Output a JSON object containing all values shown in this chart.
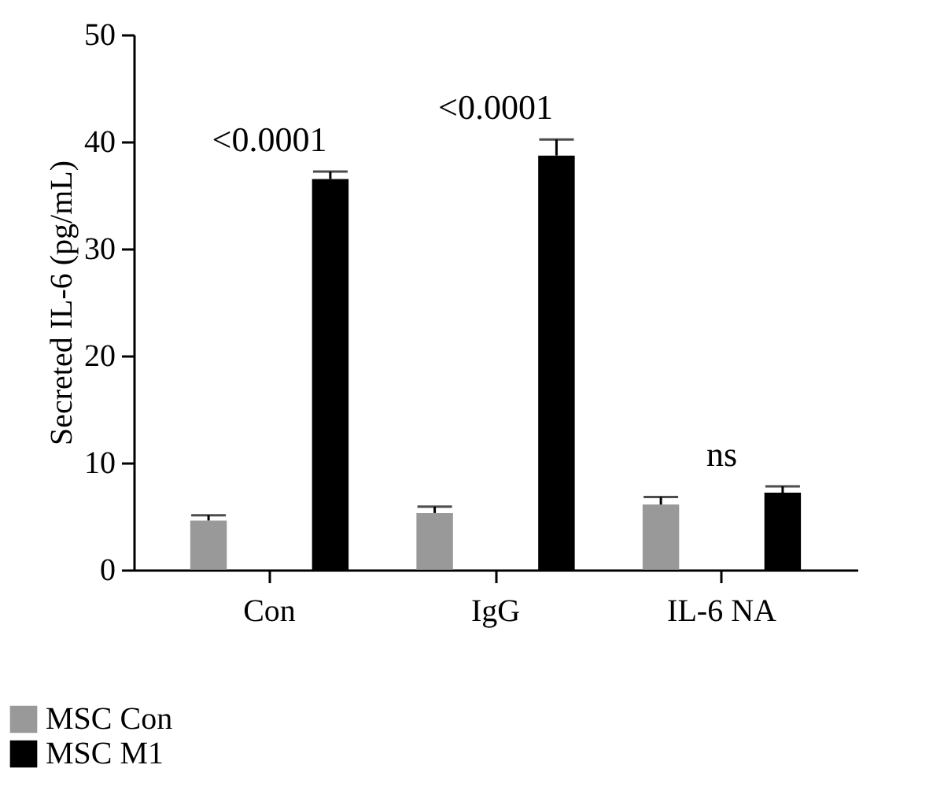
{
  "chart_data": {
    "type": "bar",
    "ylabel": "Secreted IL-6 (pg/mL)",
    "categories": [
      "Con",
      "IgG",
      "IL-6 NA"
    ],
    "series": [
      {
        "name": "MSC Con",
        "color": "#999999",
        "values": [
          4.6,
          5.3,
          6.1
        ],
        "errors": [
          0.5,
          0.6,
          0.7
        ]
      },
      {
        "name": "MSC M1",
        "color": "#000000",
        "values": [
          36.5,
          38.7,
          7.2
        ],
        "errors": [
          0.7,
          1.5,
          0.6
        ]
      }
    ],
    "ylim": [
      0,
      50
    ],
    "yticks": [
      0,
      10,
      20,
      30,
      40,
      50
    ],
    "grid": false,
    "legend": "bottom left",
    "annotations": [
      "<0.0001",
      "<0.0001",
      "ns"
    ]
  }
}
